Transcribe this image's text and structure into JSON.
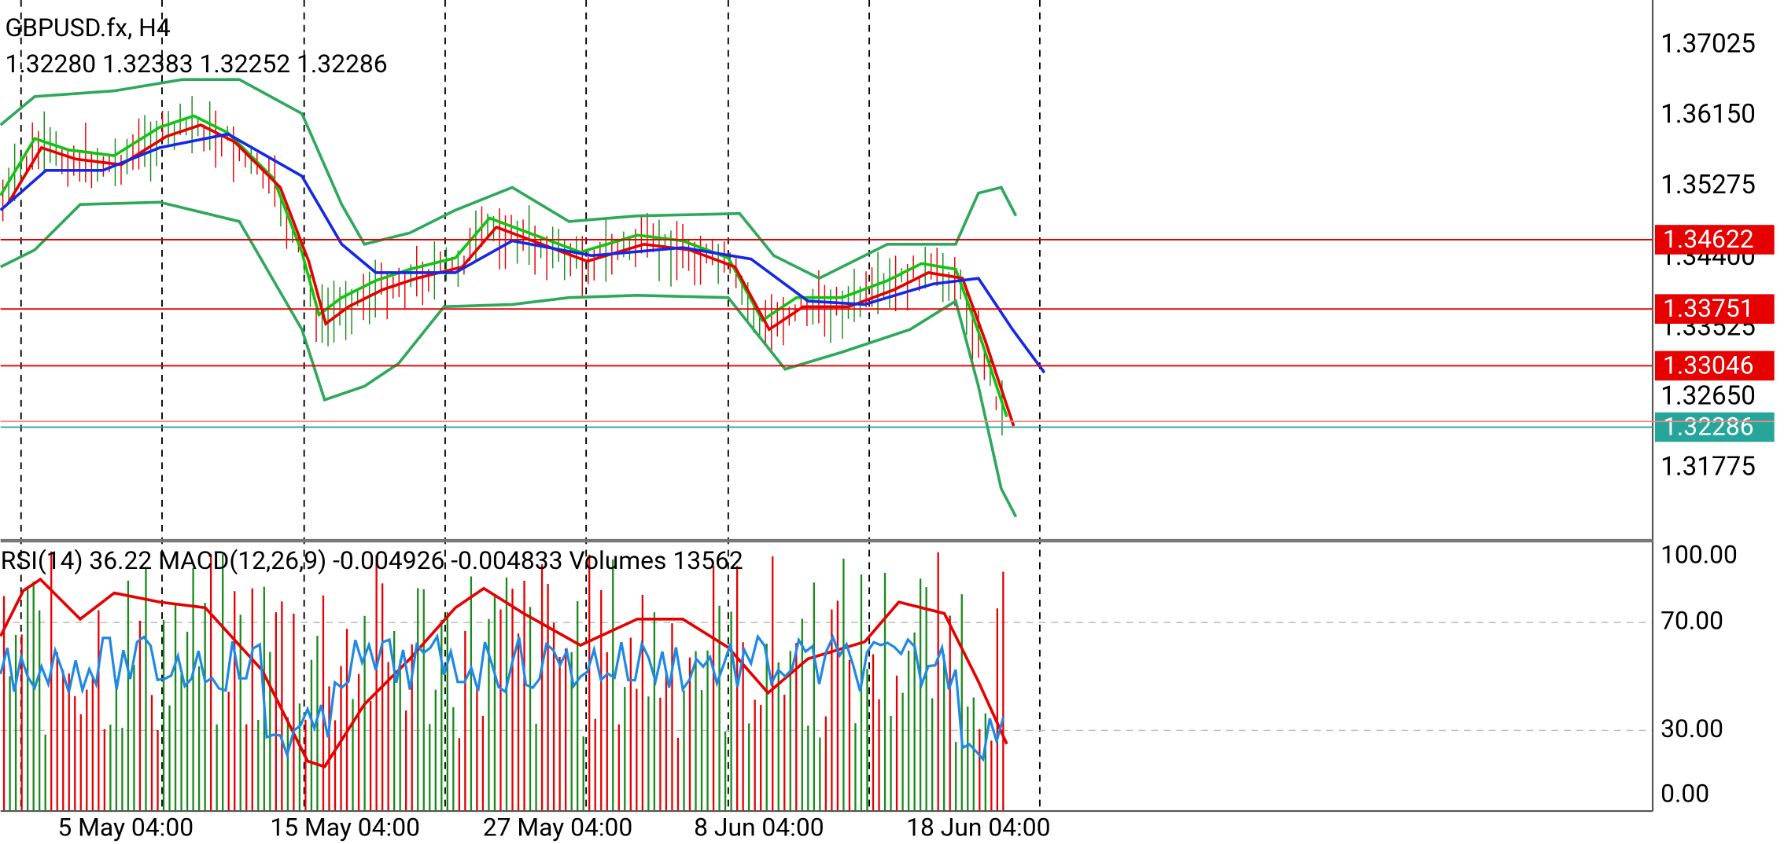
{
  "header": {
    "symbol": "GBPUSD.fx, H4",
    "ohlc": "1.32280 1.32383 1.32252 1.32286"
  },
  "price_axis": {
    "ticks": [
      "1.37025",
      "1.36150",
      "1.35275",
      "1.34400",
      "1.33525",
      "1.32650",
      "1.31775"
    ]
  },
  "price_lines": [
    {
      "label": "1.34622",
      "color": "#e60000"
    },
    {
      "label": "1.33751",
      "color": "#e60000"
    },
    {
      "label": "1.33046",
      "color": "#e60000"
    },
    {
      "label": "1.32286",
      "color": "#26a69a"
    }
  ],
  "indicator": {
    "label": "RSI(14) 36.22 MACD(12,26,9) -0.004926 -0.004833 Volumes 13562",
    "levels": [
      "100.00",
      "70.00",
      "30.00",
      "0.00"
    ]
  },
  "time_axis": [
    "5 May 04:00",
    "15 May 04:00",
    "27 May 04:00",
    "8 Jun 04:00",
    "18 Jun 04:00"
  ]
}
